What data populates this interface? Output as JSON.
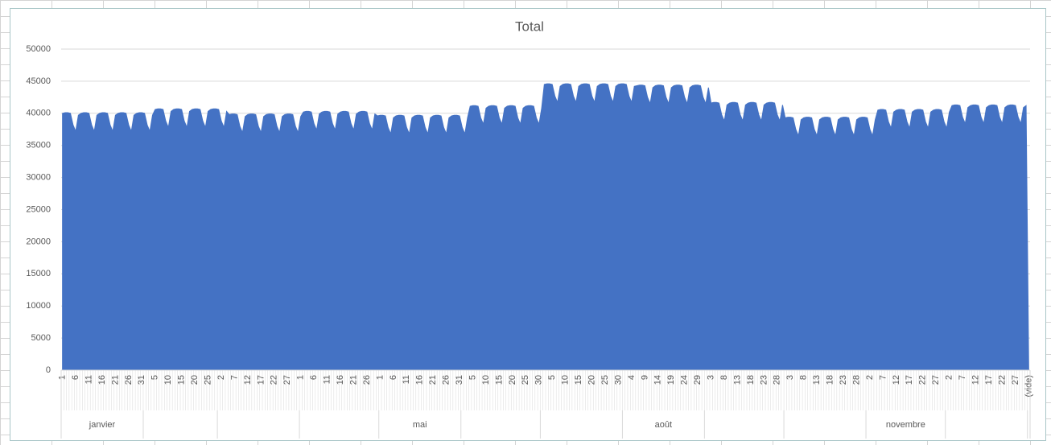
{
  "chart_data": {
    "type": "area",
    "title": "Total",
    "color": "#4472c4",
    "grid": true,
    "ylim": [
      0,
      50000
    ],
    "yticks": [
      0,
      5000,
      10000,
      15000,
      20000,
      25000,
      30000,
      35000,
      40000,
      45000,
      50000
    ],
    "months": [
      "janvier",
      null,
      null,
      null,
      "mai",
      null,
      null,
      "août",
      null,
      null,
      "novembre",
      null
    ],
    "categories": [
      "1",
      null,
      null,
      null,
      null,
      "6",
      null,
      null,
      null,
      null,
      "11",
      null,
      null,
      null,
      null,
      "16",
      null,
      null,
      null,
      null,
      "21",
      null,
      null,
      null,
      null,
      "26",
      null,
      null,
      null,
      null,
      "31",
      null,
      null,
      null,
      null,
      "5",
      null,
      null,
      null,
      null,
      "10",
      null,
      null,
      null,
      null,
      "15",
      null,
      null,
      null,
      null,
      "20",
      null,
      null,
      null,
      null,
      "25",
      null,
      null,
      null,
      null,
      "2",
      null,
      null,
      null,
      null,
      "7",
      null,
      null,
      null,
      null,
      "12",
      null,
      null,
      null,
      null,
      "17",
      null,
      null,
      null,
      null,
      "22",
      null,
      null,
      null,
      null,
      "27",
      null,
      null,
      null,
      null,
      "1",
      null,
      null,
      null,
      null,
      "6",
      null,
      null,
      null,
      null,
      "11",
      null,
      null,
      null,
      null,
      "16",
      null,
      null,
      null,
      null,
      "21",
      null,
      null,
      null,
      null,
      "26",
      null,
      null,
      null,
      null,
      "1",
      null,
      null,
      null,
      null,
      "6",
      null,
      null,
      null,
      null,
      "11",
      null,
      null,
      null,
      null,
      "16",
      null,
      null,
      null,
      null,
      "21",
      null,
      null,
      null,
      null,
      "26",
      null,
      null,
      null,
      null,
      "31",
      null,
      null,
      null,
      null,
      "5",
      null,
      null,
      null,
      null,
      "10",
      null,
      null,
      null,
      null,
      "15",
      null,
      null,
      null,
      null,
      "20",
      null,
      null,
      null,
      null,
      "25",
      null,
      null,
      null,
      null,
      "30",
      null,
      null,
      null,
      null,
      "5",
      null,
      null,
      null,
      null,
      "10",
      null,
      null,
      null,
      null,
      "15",
      null,
      null,
      null,
      null,
      "20",
      null,
      null,
      null,
      null,
      "25",
      null,
      null,
      null,
      null,
      "30",
      null,
      null,
      null,
      null,
      "4",
      null,
      null,
      null,
      null,
      "9",
      null,
      null,
      null,
      null,
      "14",
      null,
      null,
      null,
      null,
      "19",
      null,
      null,
      null,
      null,
      "24",
      null,
      null,
      null,
      null,
      "29",
      null,
      null,
      null,
      null,
      "3",
      null,
      null,
      null,
      null,
      "8",
      null,
      null,
      null,
      null,
      "13",
      null,
      null,
      null,
      null,
      "18",
      null,
      null,
      null,
      null,
      "23",
      null,
      null,
      null,
      null,
      "28",
      null,
      null,
      null,
      null,
      "3",
      null,
      null,
      null,
      null,
      "8",
      null,
      null,
      null,
      null,
      "13",
      null,
      null,
      null,
      null,
      "18",
      null,
      null,
      null,
      null,
      "23",
      null,
      null,
      null,
      null,
      "28",
      null,
      null,
      null,
      null,
      "2",
      null,
      null,
      null,
      null,
      "7",
      null,
      null,
      null,
      null,
      "12",
      null,
      null,
      null,
      null,
      "17",
      null,
      null,
      null,
      null,
      "22",
      null,
      null,
      null,
      null,
      "27",
      null,
      null,
      null,
      null,
      "2",
      null,
      null,
      null,
      null,
      "7",
      null,
      null,
      null,
      null,
      "12",
      null,
      null,
      null,
      null,
      "17",
      null,
      null,
      null,
      null,
      "22",
      null,
      null,
      null,
      null,
      "27",
      null,
      null,
      null,
      null,
      "(vide)"
    ],
    "values": [
      40000,
      40100,
      40100,
      40000,
      38200,
      37200,
      39700,
      40000,
      40100,
      40100,
      40000,
      38200,
      37200,
      39700,
      40000,
      40100,
      40100,
      40000,
      38200,
      37200,
      39700,
      40000,
      40100,
      40100,
      40000,
      38200,
      37200,
      39700,
      40000,
      40100,
      40100,
      40000,
      38200,
      37200,
      39700,
      40600,
      40700,
      40700,
      40600,
      38800,
      37800,
      40300,
      40600,
      40700,
      40700,
      40600,
      38800,
      37800,
      40300,
      40600,
      40700,
      40700,
      40600,
      38800,
      37800,
      40300,
      40600,
      40700,
      40700,
      40600,
      38800,
      37800,
      40300,
      39800,
      39900,
      39900,
      39800,
      38000,
      37000,
      39500,
      39800,
      39900,
      39900,
      39800,
      38000,
      37000,
      39500,
      39800,
      39900,
      39900,
      39800,
      38000,
      37000,
      39500,
      39800,
      39900,
      39900,
      39800,
      38000,
      37000,
      39500,
      40200,
      40300,
      40300,
      40200,
      38400,
      37400,
      39900,
      40200,
      40300,
      40300,
      40200,
      38400,
      37400,
      39900,
      40200,
      40300,
      40300,
      40200,
      38400,
      37400,
      39900,
      40200,
      40300,
      40300,
      40200,
      38400,
      37400,
      39900,
      39600,
      39700,
      39700,
      39600,
      37800,
      36800,
      39300,
      39600,
      39700,
      39700,
      39600,
      37800,
      36800,
      39300,
      39600,
      39700,
      39700,
      39600,
      37800,
      36800,
      39300,
      39600,
      39700,
      39700,
      39600,
      37800,
      36800,
      39300,
      39600,
      39700,
      39700,
      39600,
      37800,
      36800,
      39300,
      41100,
      41200,
      41200,
      41100,
      39300,
      38300,
      40800,
      41100,
      41200,
      41200,
      41100,
      39300,
      38300,
      40800,
      41100,
      41200,
      41200,
      41100,
      39300,
      38300,
      40800,
      41100,
      41200,
      41200,
      41100,
      39300,
      38300,
      40800,
      44500,
      44600,
      44600,
      44500,
      42700,
      41700,
      44200,
      44500,
      44600,
      44600,
      44500,
      42700,
      41700,
      44200,
      44500,
      44600,
      44600,
      44500,
      42700,
      41700,
      44200,
      44500,
      44600,
      44600,
      44500,
      42700,
      41700,
      44200,
      44500,
      44600,
      44600,
      44500,
      42700,
      41700,
      44200,
      44300,
      44400,
      44400,
      44300,
      42500,
      41500,
      44000,
      44300,
      44400,
      44400,
      44300,
      42500,
      41500,
      44000,
      44300,
      44400,
      44400,
      44300,
      42500,
      41500,
      44000,
      44300,
      44400,
      44400,
      44300,
      42500,
      41500,
      44000,
      41600,
      41700,
      41700,
      41600,
      39800,
      38800,
      41300,
      41600,
      41700,
      41700,
      41600,
      39800,
      38800,
      41300,
      41600,
      41700,
      41700,
      41600,
      39800,
      38800,
      41300,
      41600,
      41700,
      41700,
      41600,
      39800,
      38800,
      41300,
      39300,
      39400,
      39400,
      39300,
      37500,
      36500,
      39000,
      39300,
      39400,
      39400,
      39300,
      37500,
      36500,
      39000,
      39300,
      39400,
      39400,
      39300,
      37500,
      36500,
      39000,
      39300,
      39400,
      39400,
      39300,
      37500,
      36500,
      39000,
      39300,
      39400,
      39400,
      39300,
      37500,
      36500,
      39000,
      40500,
      40600,
      40600,
      40500,
      38700,
      37700,
      40200,
      40500,
      40600,
      40600,
      40500,
      38700,
      37700,
      40200,
      40500,
      40600,
      40600,
      40500,
      38700,
      37700,
      40200,
      40500,
      40600,
      40600,
      40500,
      38700,
      37700,
      40200,
      41200,
      41300,
      41300,
      41200,
      39400,
      38400,
      40900,
      41200,
      41300,
      41300,
      41200,
      39400,
      38400,
      40900,
      41200,
      41300,
      41300,
      41200,
      39400,
      38400,
      40900,
      41200,
      41300,
      41300,
      41200,
      39400,
      38400,
      40900,
      41200,
      0
    ]
  }
}
